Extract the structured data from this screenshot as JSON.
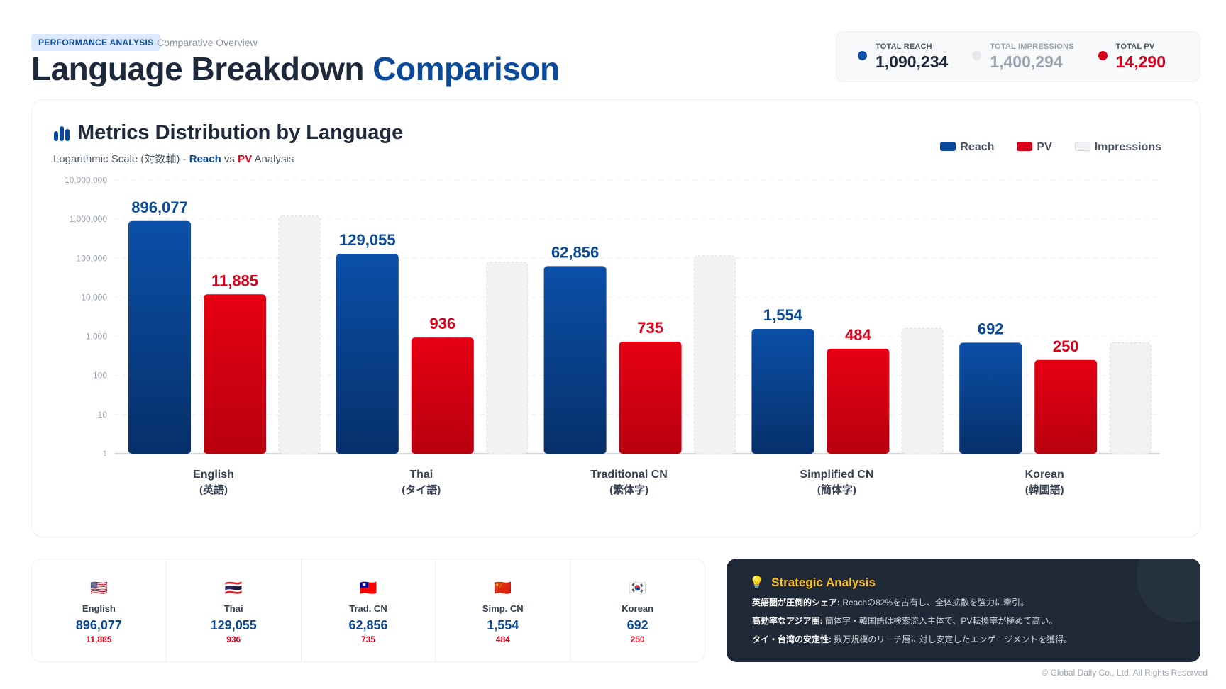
{
  "header": {
    "tag": "PERFORMANCE ANALYSIS",
    "subtitle": "Comparative Overview",
    "title_main": "Language Breakdown",
    "title_accent": "Comparison"
  },
  "stats": [
    {
      "label": "TOTAL REACH",
      "value": "1,090,234",
      "color": "#0b4fa8"
    },
    {
      "label": "TOTAL IMPRESSIONS",
      "value": "1,400,294",
      "color": "#9ca3af"
    },
    {
      "label": "TOTAL PV",
      "value": "14,290",
      "color": "#d9001b"
    }
  ],
  "chart_card": {
    "title": "Metrics Distribution by Language",
    "icon": "bar-chart-icon",
    "sub_prefix": "Logarithmic Scale (対数軸) - ",
    "sub_reach": "Reach",
    "sub_vs": " vs ",
    "sub_pv": "PV",
    "sub_suffix": " Analysis"
  },
  "chart_data": {
    "type": "bar",
    "scale": "log",
    "ylim": [
      1,
      10000000
    ],
    "grid": true,
    "legend": "top-right",
    "yticks": [
      "10,000,000",
      "1,000,000",
      "100,000",
      "10,000",
      "1,000",
      "100",
      "10",
      "1"
    ],
    "categories": [
      "English",
      "Thai",
      "Traditional CN",
      "Simplified CN",
      "Korean"
    ],
    "categories_sub": [
      "(英語)",
      "(タイ語)",
      "(繁体字)",
      "(簡体字)",
      "(韓国語)"
    ],
    "series": [
      {
        "name": "Reach",
        "color": "#0b4a9a",
        "values": [
          896077,
          129055,
          62856,
          1554,
          692
        ],
        "labels": [
          "896,077",
          "129,055",
          "62,856",
          "1,554",
          "692"
        ]
      },
      {
        "name": "PV",
        "color": "#d9001b",
        "values": [
          11885,
          936,
          735,
          484,
          250
        ],
        "labels": [
          "11,885",
          "936",
          "735",
          "484",
          "250"
        ]
      },
      {
        "name": "Impressions",
        "color": "#f1f2f4",
        "values": [
          1200000,
          80000,
          115000,
          1600,
          700
        ]
      }
    ]
  },
  "languages": [
    {
      "flag": "🇺🇸",
      "name": "English",
      "reach": "896,077",
      "pv": "11,885"
    },
    {
      "flag": "🇹🇭",
      "name": "Thai",
      "reach": "129,055",
      "pv": "936"
    },
    {
      "flag": "🇹🇼",
      "name": "Trad. CN",
      "reach": "62,856",
      "pv": "735"
    },
    {
      "flag": "🇨🇳",
      "name": "Simp. CN",
      "reach": "1,554",
      "pv": "484"
    },
    {
      "flag": "🇰🇷",
      "name": "Korean",
      "reach": "692",
      "pv": "250"
    }
  ],
  "analysis": {
    "title": "Strategic Analysis",
    "icon": "lightbulb-icon",
    "items": [
      {
        "bold": "英語圏が圧倒的シェア:",
        "text": " Reachの82%を占有し、全体拡散を強力に牽引。"
      },
      {
        "bold": "高効率なアジア圏:",
        "text": " 簡体字・韓国語は検索流入主体で、PV転換率が極めて高い。"
      },
      {
        "bold": "タイ・台湾の安定性:",
        "text": " 数万規模のリーチ層に対し安定したエンゲージメントを獲得。"
      }
    ]
  },
  "footer": "© Global Daily Co., Ltd. All Rights Reserved"
}
